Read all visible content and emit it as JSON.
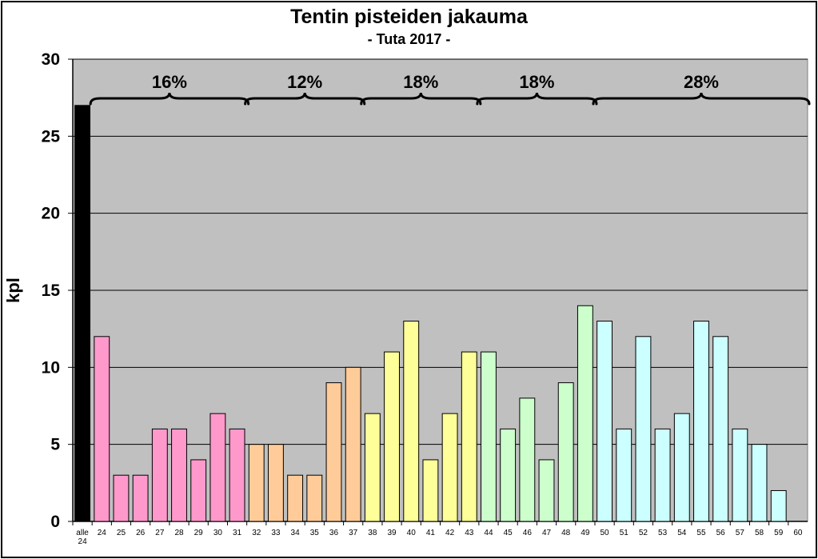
{
  "chart_data": {
    "type": "bar",
    "title": "Tentin pisteiden jakauma",
    "subtitle": "- Tuta 2017 -",
    "ylabel": "kpl",
    "xlabel": "",
    "ylim": [
      0,
      30
    ],
    "yticks": [
      "0",
      "5",
      "10",
      "15",
      "20",
      "25",
      "30"
    ],
    "grid": true,
    "plot_background": "#c0c0c0",
    "categories": [
      "alle 24",
      "24",
      "25",
      "26",
      "27",
      "28",
      "29",
      "30",
      "31",
      "32",
      "33",
      "34",
      "35",
      "36",
      "37",
      "38",
      "39",
      "40",
      "41",
      "42",
      "43",
      "44",
      "45",
      "46",
      "47",
      "48",
      "49",
      "50",
      "51",
      "52",
      "53",
      "54",
      "55",
      "56",
      "57",
      "58",
      "59",
      "60"
    ],
    "values": [
      27,
      12,
      3,
      3,
      6,
      6,
      4,
      7,
      6,
      5,
      5,
      3,
      3,
      9,
      10,
      7,
      11,
      13,
      4,
      7,
      11,
      11,
      6,
      8,
      4,
      9,
      14,
      13,
      6,
      12,
      6,
      7,
      13,
      12,
      6,
      5,
      2,
      0
    ],
    "group_colors": {
      "below": "#000000",
      "g1": "#ff99cc",
      "g2": "#ffcc99",
      "g3": "#ffff99",
      "g4": "#ccffcc",
      "g5": "#ccffff"
    },
    "bar_groups": [
      "below",
      "g1",
      "g1",
      "g1",
      "g1",
      "g1",
      "g1",
      "g1",
      "g1",
      "g2",
      "g2",
      "g2",
      "g2",
      "g2",
      "g2",
      "g3",
      "g3",
      "g3",
      "g3",
      "g3",
      "g3",
      "g4",
      "g4",
      "g4",
      "g4",
      "g4",
      "g4",
      "g5",
      "g5",
      "g5",
      "g5",
      "g5",
      "g5",
      "g5",
      "g5",
      "g5",
      "g5",
      "g5"
    ],
    "annotations": [
      {
        "label": "16%",
        "from": "24",
        "to": "31"
      },
      {
        "label": "12%",
        "from": "32",
        "to": "37"
      },
      {
        "label": "18%",
        "from": "38",
        "to": "43"
      },
      {
        "label": "18%",
        "from": "44",
        "to": "49"
      },
      {
        "label": "28%",
        "from": "50",
        "to": "60"
      }
    ]
  }
}
